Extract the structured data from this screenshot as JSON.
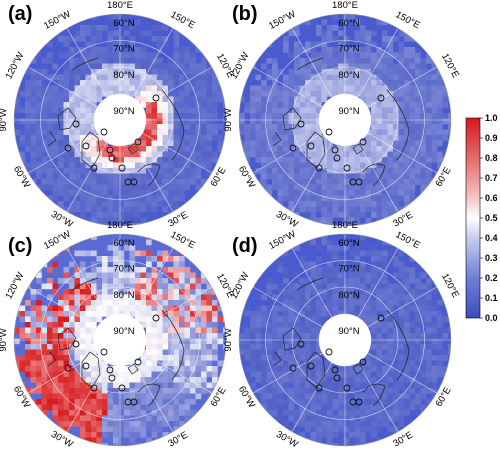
{
  "panels": [
    {
      "id": "a",
      "label": "(a)",
      "pattern": "ring_red"
    },
    {
      "id": "b",
      "label": "(b)",
      "pattern": "mostly_low"
    },
    {
      "id": "c",
      "label": "(c)",
      "pattern": "mixed_high"
    },
    {
      "id": "d",
      "label": "(d)",
      "pattern": "uniform_low"
    }
  ],
  "lon_labels": {
    "top": "180°E",
    "upper_left": "150°W",
    "upper_right": "150°E",
    "left_upper": "120°W",
    "right_upper": "120°E",
    "left": "90°W",
    "left_lower": "60°W",
    "right_lower": "60°E",
    "bottom_left": "30°W",
    "bottom_right": "30°E"
  },
  "lat_labels": [
    "60°N",
    "70°N",
    "80°N",
    "90°N"
  ],
  "colorbar": {
    "ticks": [
      "1.0",
      "0.9",
      "0.8",
      "0.7",
      "0.6",
      "0.5",
      "0.4",
      "0.3",
      "0.2",
      "0.1",
      "0.0"
    ],
    "min": 0.0,
    "max": 1.0,
    "low_color": "#3b4cc0",
    "mid_color": "#ffffff",
    "high_color": "#d7191c"
  },
  "colors": {
    "ocean_base": "#4a5bd0",
    "coastline": "#222222",
    "gridline": "#ffffff"
  }
}
